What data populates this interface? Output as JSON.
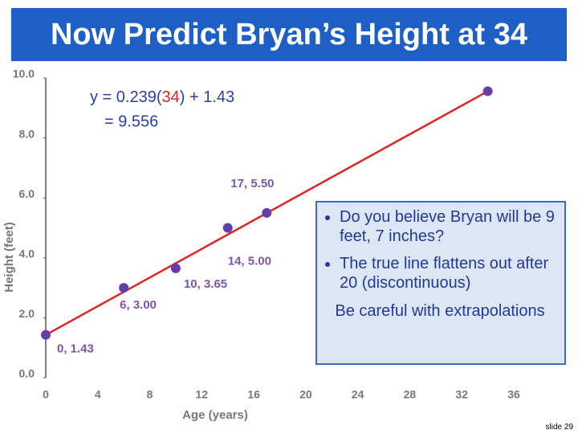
{
  "title": "Now Predict Bryan’s Height at 34",
  "chart_data": {
    "type": "scatter",
    "series": [
      {
        "type": "scatter",
        "color": "#6a3aa8",
        "x": [
          0,
          6,
          10,
          14,
          17,
          34
        ],
        "values": [
          1.43,
          3.0,
          3.65,
          5.0,
          5.5,
          9.556
        ],
        "value_labels": [
          "0, 1.43",
          "6, 3.00",
          "10, 3.65",
          "14, 5.00",
          "17, 5.50",
          null
        ],
        "label_color": "#7b55ad"
      },
      {
        "type": "line",
        "color": "#e02424",
        "x": [
          0,
          34
        ],
        "values": [
          1.43,
          9.556
        ]
      }
    ],
    "xlabel": "Age (years)",
    "ylabel": "Height (feet)",
    "xlim": [
      0,
      36
    ],
    "xticks": [
      0,
      4,
      8,
      12,
      16,
      20,
      24,
      28,
      32,
      36
    ],
    "ylim": [
      0,
      10
    ],
    "yticks": [
      {
        "value": 0,
        "label": "0.0"
      },
      {
        "value": 2,
        "label": "2.0"
      },
      {
        "value": 4,
        "label": "4.0"
      },
      {
        "value": 6,
        "label": "6.0"
      },
      {
        "value": 8,
        "label": "8.0"
      },
      {
        "value": 10,
        "label": "10.0"
      }
    ],
    "grid": false
  },
  "equation": {
    "line1_prefix": "y = 0.239(",
    "line1_x": "34",
    "line1_suffix": ") + 1.43",
    "line2": "= 9.556"
  },
  "callout": {
    "bullets": [
      "Do you believe Bryan will be 9 feet, 7 inches?",
      "The true line flattens out after 20 (discontinuous)"
    ],
    "note": "Be careful with extrapolations"
  },
  "slide_number": "slide 29"
}
